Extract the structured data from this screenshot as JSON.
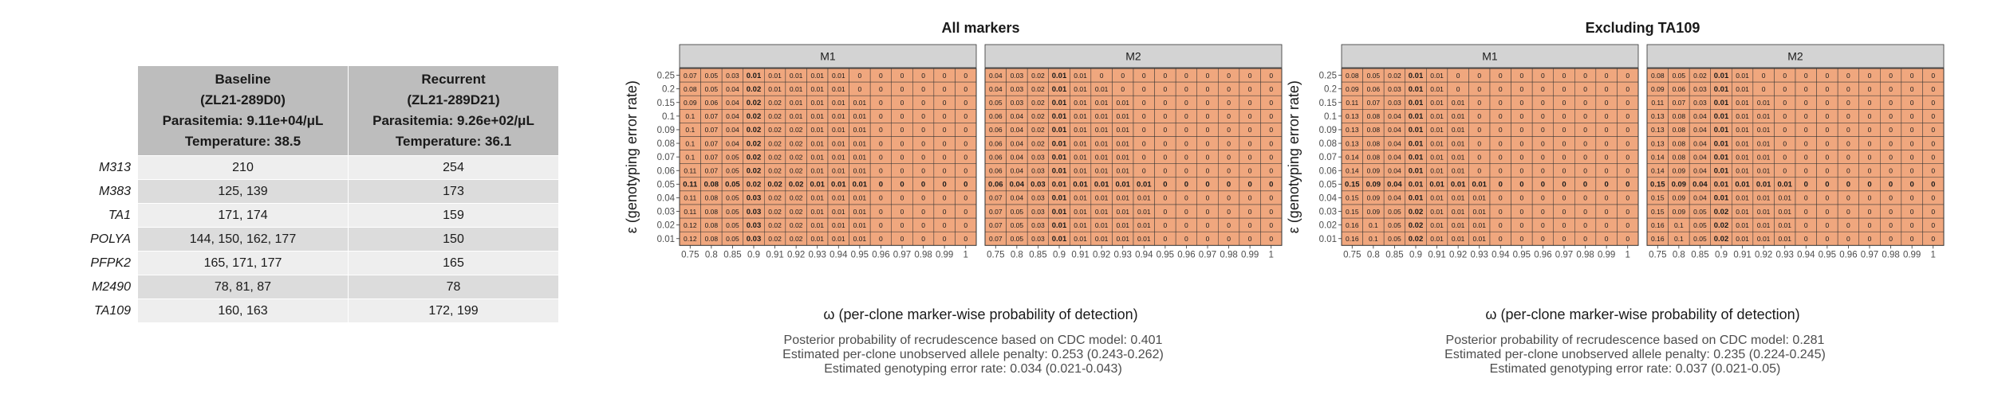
{
  "table": {
    "columns": [
      [
        "Baseline",
        "(ZL21-289D0)",
        "Parasitemia: 9.11e+04/μL",
        "Temperature: 38.5"
      ],
      [
        "Recurrent",
        "(ZL21-289D21)",
        "Parasitemia: 9.26e+02/μL",
        "Temperature: 36.1"
      ]
    ],
    "rows": [
      {
        "marker": "M313",
        "baseline": "210",
        "recurrent": "254"
      },
      {
        "marker": "M383",
        "baseline": "125, 139",
        "recurrent": "173"
      },
      {
        "marker": "TA1",
        "baseline": "171, 174",
        "recurrent": "159"
      },
      {
        "marker": "POLYA",
        "baseline": "144, 150, 162, 177",
        "recurrent": "150"
      },
      {
        "marker": "PFPK2",
        "baseline": "165, 171, 177",
        "recurrent": "165"
      },
      {
        "marker": "M2490",
        "baseline": "78, 81, 87",
        "recurrent": "78"
      },
      {
        "marker": "TA109",
        "baseline": "160, 163",
        "recurrent": "172, 199"
      }
    ]
  },
  "colors": {
    "cell_fill": "#f0a77e",
    "strip_fill": "#d3d3d3",
    "grid_line": "#333333"
  },
  "chart_data": [
    {
      "type": "heatmap",
      "title": "All markers",
      "xlabel": "ω (per-clone marker-wise probability of detection)",
      "ylabel": "ε (genotyping error rate)",
      "x": [
        "0.75",
        "0.8",
        "0.85",
        "0.9",
        "0.91",
        "0.92",
        "0.93",
        "0.94",
        "0.95",
        "0.96",
        "0.97",
        "0.98",
        "0.99",
        "1"
      ],
      "y": [
        "0.25",
        "0.2",
        "0.15",
        "0.1",
        "0.09",
        "0.08",
        "0.07",
        "0.06",
        "0.05",
        "0.04",
        "0.03",
        "0.02",
        "0.01"
      ],
      "bold_x": "0.9",
      "bold_y": "0.05",
      "panels": [
        {
          "name": "M1",
          "rows": [
            [
              "0.07",
              "0.05",
              "0.03",
              "0.01",
              "0.01",
              "0.01",
              "0.01",
              "0.01",
              "0",
              "0",
              "0",
              "0",
              "0",
              "0"
            ],
            [
              "0.08",
              "0.05",
              "0.04",
              "0.02",
              "0.01",
              "0.01",
              "0.01",
              "0.01",
              "0",
              "0",
              "0",
              "0",
              "0",
              "0"
            ],
            [
              "0.09",
              "0.06",
              "0.04",
              "0.02",
              "0.02",
              "0.01",
              "0.01",
              "0.01",
              "0.01",
              "0",
              "0",
              "0",
              "0",
              "0"
            ],
            [
              "0.1",
              "0.07",
              "0.04",
              "0.02",
              "0.02",
              "0.01",
              "0.01",
              "0.01",
              "0.01",
              "0",
              "0",
              "0",
              "0",
              "0"
            ],
            [
              "0.1",
              "0.07",
              "0.04",
              "0.02",
              "0.02",
              "0.02",
              "0.01",
              "0.01",
              "0.01",
              "0",
              "0",
              "0",
              "0",
              "0"
            ],
            [
              "0.1",
              "0.07",
              "0.04",
              "0.02",
              "0.02",
              "0.02",
              "0.01",
              "0.01",
              "0.01",
              "0",
              "0",
              "0",
              "0",
              "0"
            ],
            [
              "0.1",
              "0.07",
              "0.05",
              "0.02",
              "0.02",
              "0.02",
              "0.01",
              "0.01",
              "0.01",
              "0",
              "0",
              "0",
              "0",
              "0"
            ],
            [
              "0.11",
              "0.07",
              "0.05",
              "0.02",
              "0.02",
              "0.02",
              "0.01",
              "0.01",
              "0.01",
              "0",
              "0",
              "0",
              "0",
              "0"
            ],
            [
              "0.11",
              "0.08",
              "0.05",
              "0.02",
              "0.02",
              "0.02",
              "0.01",
              "0.01",
              "0.01",
              "0",
              "0",
              "0",
              "0",
              "0"
            ],
            [
              "0.11",
              "0.08",
              "0.05",
              "0.03",
              "0.02",
              "0.02",
              "0.01",
              "0.01",
              "0.01",
              "0",
              "0",
              "0",
              "0",
              "0"
            ],
            [
              "0.11",
              "0.08",
              "0.05",
              "0.03",
              "0.02",
              "0.02",
              "0.01",
              "0.01",
              "0.01",
              "0",
              "0",
              "0",
              "0",
              "0"
            ],
            [
              "0.12",
              "0.08",
              "0.05",
              "0.03",
              "0.02",
              "0.02",
              "0.01",
              "0.01",
              "0.01",
              "0",
              "0",
              "0",
              "0",
              "0"
            ],
            [
              "0.12",
              "0.08",
              "0.05",
              "0.03",
              "0.02",
              "0.02",
              "0.01",
              "0.01",
              "0.01",
              "0",
              "0",
              "0",
              "0",
              "0"
            ]
          ]
        },
        {
          "name": "M2",
          "rows": [
            [
              "0.04",
              "0.03",
              "0.02",
              "0.01",
              "0.01",
              "0",
              "0",
              "0",
              "0",
              "0",
              "0",
              "0",
              "0",
              "0"
            ],
            [
              "0.04",
              "0.03",
              "0.02",
              "0.01",
              "0.01",
              "0.01",
              "0",
              "0",
              "0",
              "0",
              "0",
              "0",
              "0",
              "0"
            ],
            [
              "0.05",
              "0.03",
              "0.02",
              "0.01",
              "0.01",
              "0.01",
              "0.01",
              "0",
              "0",
              "0",
              "0",
              "0",
              "0",
              "0"
            ],
            [
              "0.06",
              "0.04",
              "0.02",
              "0.01",
              "0.01",
              "0.01",
              "0.01",
              "0",
              "0",
              "0",
              "0",
              "0",
              "0",
              "0"
            ],
            [
              "0.06",
              "0.04",
              "0.02",
              "0.01",
              "0.01",
              "0.01",
              "0.01",
              "0",
              "0",
              "0",
              "0",
              "0",
              "0",
              "0"
            ],
            [
              "0.06",
              "0.04",
              "0.02",
              "0.01",
              "0.01",
              "0.01",
              "0.01",
              "0",
              "0",
              "0",
              "0",
              "0",
              "0",
              "0"
            ],
            [
              "0.06",
              "0.04",
              "0.03",
              "0.01",
              "0.01",
              "0.01",
              "0.01",
              "0",
              "0",
              "0",
              "0",
              "0",
              "0",
              "0"
            ],
            [
              "0.06",
              "0.04",
              "0.03",
              "0.01",
              "0.01",
              "0.01",
              "0.01",
              "0",
              "0",
              "0",
              "0",
              "0",
              "0",
              "0"
            ],
            [
              "0.06",
              "0.04",
              "0.03",
              "0.01",
              "0.01",
              "0.01",
              "0.01",
              "0.01",
              "0",
              "0",
              "0",
              "0",
              "0",
              "0"
            ],
            [
              "0.07",
              "0.04",
              "0.03",
              "0.01",
              "0.01",
              "0.01",
              "0.01",
              "0.01",
              "0",
              "0",
              "0",
              "0",
              "0",
              "0"
            ],
            [
              "0.07",
              "0.05",
              "0.03",
              "0.01",
              "0.01",
              "0.01",
              "0.01",
              "0.01",
              "0",
              "0",
              "0",
              "0",
              "0",
              "0"
            ],
            [
              "0.07",
              "0.05",
              "0.03",
              "0.01",
              "0.01",
              "0.01",
              "0.01",
              "0.01",
              "0",
              "0",
              "0",
              "0",
              "0",
              "0"
            ],
            [
              "0.07",
              "0.05",
              "0.03",
              "0.01",
              "0.01",
              "0.01",
              "0.01",
              "0.01",
              "0",
              "0",
              "0",
              "0",
              "0",
              "0"
            ]
          ]
        }
      ],
      "summary": [
        "Posterior probability of recrudescence based on CDC model: 0.401",
        "Estimated per-clone unobserved allele penalty: 0.253 (0.243-0.262)",
        "Estimated genotyping error rate: 0.034 (0.021-0.043)"
      ]
    },
    {
      "type": "heatmap",
      "title": "Excluding TA109",
      "xlabel": "ω (per-clone marker-wise probability of detection)",
      "ylabel": "ε (genotyping error rate)",
      "x": [
        "0.75",
        "0.8",
        "0.85",
        "0.9",
        "0.91",
        "0.92",
        "0.93",
        "0.94",
        "0.95",
        "0.96",
        "0.97",
        "0.98",
        "0.99",
        "1"
      ],
      "y": [
        "0.25",
        "0.2",
        "0.15",
        "0.1",
        "0.09",
        "0.08",
        "0.07",
        "0.06",
        "0.05",
        "0.04",
        "0.03",
        "0.02",
        "0.01"
      ],
      "bold_x": "0.9",
      "bold_y": "0.05",
      "panels": [
        {
          "name": "M1",
          "rows": [
            [
              "0.08",
              "0.05",
              "0.02",
              "0.01",
              "0.01",
              "0",
              "0",
              "0",
              "0",
              "0",
              "0",
              "0",
              "0",
              "0"
            ],
            [
              "0.09",
              "0.06",
              "0.03",
              "0.01",
              "0.01",
              "0",
              "0",
              "0",
              "0",
              "0",
              "0",
              "0",
              "0",
              "0"
            ],
            [
              "0.11",
              "0.07",
              "0.03",
              "0.01",
              "0.01",
              "0.01",
              "0",
              "0",
              "0",
              "0",
              "0",
              "0",
              "0",
              "0"
            ],
            [
              "0.13",
              "0.08",
              "0.04",
              "0.01",
              "0.01",
              "0.01",
              "0",
              "0",
              "0",
              "0",
              "0",
              "0",
              "0",
              "0"
            ],
            [
              "0.13",
              "0.08",
              "0.04",
              "0.01",
              "0.01",
              "0.01",
              "0",
              "0",
              "0",
              "0",
              "0",
              "0",
              "0",
              "0"
            ],
            [
              "0.13",
              "0.08",
              "0.04",
              "0.01",
              "0.01",
              "0.01",
              "0",
              "0",
              "0",
              "0",
              "0",
              "0",
              "0",
              "0"
            ],
            [
              "0.14",
              "0.08",
              "0.04",
              "0.01",
              "0.01",
              "0.01",
              "0",
              "0",
              "0",
              "0",
              "0",
              "0",
              "0",
              "0"
            ],
            [
              "0.14",
              "0.09",
              "0.04",
              "0.01",
              "0.01",
              "0.01",
              "0",
              "0",
              "0",
              "0",
              "0",
              "0",
              "0",
              "0"
            ],
            [
              "0.15",
              "0.09",
              "0.04",
              "0.01",
              "0.01",
              "0.01",
              "0.01",
              "0",
              "0",
              "0",
              "0",
              "0",
              "0",
              "0"
            ],
            [
              "0.15",
              "0.09",
              "0.04",
              "0.01",
              "0.01",
              "0.01",
              "0.01",
              "0",
              "0",
              "0",
              "0",
              "0",
              "0",
              "0"
            ],
            [
              "0.15",
              "0.09",
              "0.05",
              "0.02",
              "0.01",
              "0.01",
              "0.01",
              "0",
              "0",
              "0",
              "0",
              "0",
              "0",
              "0"
            ],
            [
              "0.16",
              "0.1",
              "0.05",
              "0.02",
              "0.01",
              "0.01",
              "0.01",
              "0",
              "0",
              "0",
              "0",
              "0",
              "0",
              "0"
            ],
            [
              "0.16",
              "0.1",
              "0.05",
              "0.02",
              "0.01",
              "0.01",
              "0.01",
              "0",
              "0",
              "0",
              "0",
              "0",
              "0",
              "0"
            ]
          ]
        },
        {
          "name": "M2",
          "rows": [
            [
              "0.08",
              "0.05",
              "0.02",
              "0.01",
              "0.01",
              "0",
              "0",
              "0",
              "0",
              "0",
              "0",
              "0",
              "0",
              "0"
            ],
            [
              "0.09",
              "0.06",
              "0.03",
              "0.01",
              "0.01",
              "0",
              "0",
              "0",
              "0",
              "0",
              "0",
              "0",
              "0",
              "0"
            ],
            [
              "0.11",
              "0.07",
              "0.03",
              "0.01",
              "0.01",
              "0.01",
              "0",
              "0",
              "0",
              "0",
              "0",
              "0",
              "0",
              "0"
            ],
            [
              "0.13",
              "0.08",
              "0.04",
              "0.01",
              "0.01",
              "0.01",
              "0",
              "0",
              "0",
              "0",
              "0",
              "0",
              "0",
              "0"
            ],
            [
              "0.13",
              "0.08",
              "0.04",
              "0.01",
              "0.01",
              "0.01",
              "0",
              "0",
              "0",
              "0",
              "0",
              "0",
              "0",
              "0"
            ],
            [
              "0.13",
              "0.08",
              "0.04",
              "0.01",
              "0.01",
              "0.01",
              "0",
              "0",
              "0",
              "0",
              "0",
              "0",
              "0",
              "0"
            ],
            [
              "0.14",
              "0.08",
              "0.04",
              "0.01",
              "0.01",
              "0.01",
              "0",
              "0",
              "0",
              "0",
              "0",
              "0",
              "0",
              "0"
            ],
            [
              "0.14",
              "0.09",
              "0.04",
              "0.01",
              "0.01",
              "0.01",
              "0",
              "0",
              "0",
              "0",
              "0",
              "0",
              "0",
              "0"
            ],
            [
              "0.15",
              "0.09",
              "0.04",
              "0.01",
              "0.01",
              "0.01",
              "0.01",
              "0",
              "0",
              "0",
              "0",
              "0",
              "0",
              "0"
            ],
            [
              "0.15",
              "0.09",
              "0.04",
              "0.01",
              "0.01",
              "0.01",
              "0.01",
              "0",
              "0",
              "0",
              "0",
              "0",
              "0",
              "0"
            ],
            [
              "0.15",
              "0.09",
              "0.05",
              "0.02",
              "0.01",
              "0.01",
              "0.01",
              "0",
              "0",
              "0",
              "0",
              "0",
              "0",
              "0"
            ],
            [
              "0.16",
              "0.1",
              "0.05",
              "0.02",
              "0.01",
              "0.01",
              "0.01",
              "0",
              "0",
              "0",
              "0",
              "0",
              "0",
              "0"
            ],
            [
              "0.16",
              "0.1",
              "0.05",
              "0.02",
              "0.01",
              "0.01",
              "0.01",
              "0",
              "0",
              "0",
              "0",
              "0",
              "0",
              "0"
            ]
          ]
        }
      ],
      "summary": [
        "Posterior probability of recrudescence based on CDC model: 0.281",
        "Estimated per-clone unobserved allele penalty: 0.235 (0.224-0.245)",
        "Estimated genotyping error rate: 0.037 (0.021-0.05)"
      ]
    }
  ]
}
